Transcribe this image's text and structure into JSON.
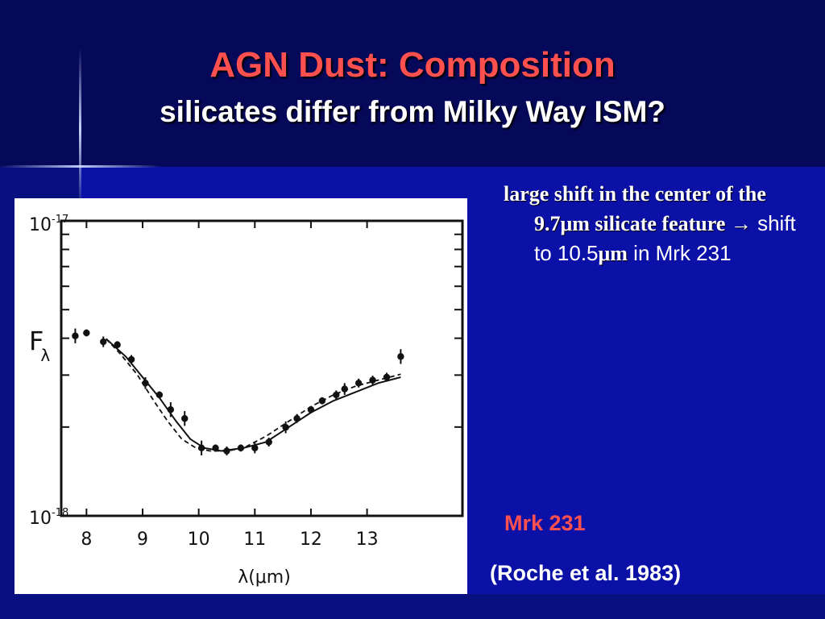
{
  "slide": {
    "title": "AGN Dust: Composition",
    "subtitle": "silicates differ from Milky Way ISM?",
    "bullet": {
      "part1": "large shift in the center of the 9.7",
      "mu1": "μ",
      "part2": "m silicate feature ",
      "arrow": "→",
      "part3": " shift to 10.5",
      "mu2": "μ",
      "part4": "m",
      "part5": " in Mrk 231"
    },
    "object_name": "Mrk 231",
    "citation": "(Roche et al. 1983)"
  },
  "colors": {
    "title": "#ff5050",
    "background_top": "#06085a",
    "background_main": "#0b10a6",
    "text": "#ffffff"
  },
  "chart_data": {
    "type": "scatter",
    "title": "",
    "xlabel": "λ(μm)",
    "ylabel_main": "F",
    "ylabel_sub": "λ",
    "xlim": [
      7.55,
      14.7
    ],
    "ylim_log10": [
      -18,
      -17
    ],
    "y_scale": "log",
    "x_ticks": [
      8,
      9,
      10,
      11,
      12,
      13
    ],
    "x_tick_labels": [
      "8",
      "9",
      "10",
      "11",
      "12",
      "13"
    ],
    "y_tick_labels": [
      {
        "value_log10": -17,
        "base": "10",
        "exp": "-17"
      },
      {
        "value_log10": -18,
        "base": "10",
        "exp": "-18"
      }
    ],
    "series": [
      {
        "style": "points-with-errorbars",
        "x": [
          7.8,
          8.0,
          8.3,
          8.55,
          8.8,
          9.05,
          9.3,
          9.5,
          9.75,
          10.05,
          10.3,
          10.5,
          10.75,
          11.0,
          11.25,
          11.55,
          11.75,
          12.0,
          12.2,
          12.45,
          12.6,
          12.85,
          13.1,
          13.35,
          13.6
        ],
        "y_log10": [
          -17.39,
          -17.38,
          -17.41,
          -17.42,
          -17.47,
          -17.55,
          -17.59,
          -17.64,
          -17.67,
          -17.77,
          -17.77,
          -17.78,
          -17.77,
          -17.77,
          -17.75,
          -17.7,
          -17.67,
          -17.64,
          -17.61,
          -17.59,
          -17.57,
          -17.55,
          -17.54,
          -17.53,
          -17.46
        ],
        "y_err_log10": [
          0.025,
          0.012,
          0.018,
          0.012,
          0.015,
          0.02,
          0.012,
          0.025,
          0.025,
          0.025,
          0.012,
          0.015,
          0.012,
          0.018,
          0.015,
          0.02,
          0.015,
          0.012,
          0.012,
          0.015,
          0.02,
          0.015,
          0.015,
          0.015,
          0.025
        ]
      },
      {
        "style": "solid",
        "x": [
          8.35,
          8.7,
          9.0,
          9.3,
          9.6,
          9.85,
          10.1,
          10.4,
          10.8,
          11.2,
          11.6,
          12.0,
          12.4,
          12.8,
          13.2,
          13.6
        ],
        "y_log10": [
          -17.4,
          -17.46,
          -17.53,
          -17.6,
          -17.68,
          -17.74,
          -17.77,
          -17.78,
          -17.77,
          -17.75,
          -17.7,
          -17.65,
          -17.61,
          -17.58,
          -17.55,
          -17.53
        ]
      },
      {
        "style": "dashed",
        "x": [
          8.35,
          8.6,
          8.9,
          9.2,
          9.45,
          9.7,
          9.95,
          10.2,
          10.5,
          10.8,
          11.2,
          11.6,
          12.0,
          12.4,
          12.8,
          13.2,
          13.6
        ],
        "y_log10": [
          -17.4,
          -17.45,
          -17.52,
          -17.61,
          -17.68,
          -17.74,
          -17.77,
          -17.78,
          -17.78,
          -17.77,
          -17.73,
          -17.68,
          -17.63,
          -17.59,
          -17.56,
          -17.54,
          -17.52
        ]
      }
    ]
  }
}
